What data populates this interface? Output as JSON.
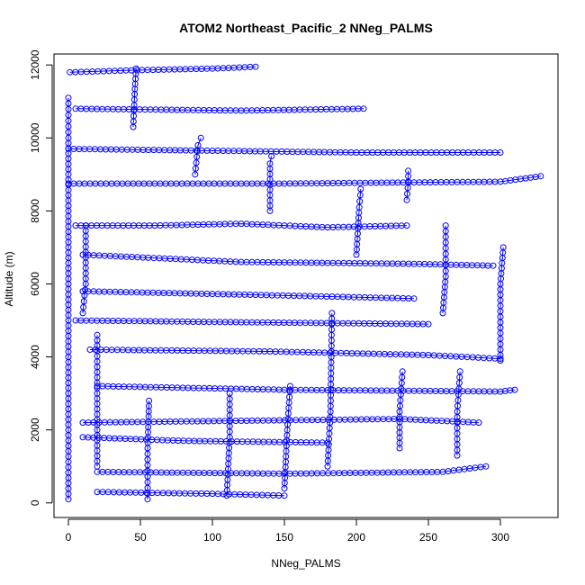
{
  "chart_data": {
    "type": "scatter",
    "title": "ATOM2 Northeast_Pacific_2 NNeg_PALMS",
    "xlabel": "NNeg_PALMS",
    "ylabel": "Altitude (m)",
    "xlim": [
      -10,
      340
    ],
    "ylim": [
      -400,
      12300
    ],
    "x_ticks": [
      0,
      50,
      100,
      150,
      200,
      250,
      300
    ],
    "y_ticks": [
      0,
      2000,
      4000,
      6000,
      8000,
      10000,
      12000
    ],
    "grid": false,
    "legend": "none",
    "color": "#0000ff",
    "marker": "open-circle",
    "series": [
      {
        "values": [
          [
            0,
            100
          ],
          [
            0,
            2000
          ],
          [
            0,
            4000
          ],
          [
            0,
            6000
          ],
          [
            0,
            8000
          ],
          [
            0,
            10000
          ],
          [
            0,
            11100
          ]
        ]
      },
      {
        "values": [
          [
            1,
            11800
          ],
          [
            40,
            11850
          ],
          [
            100,
            11900
          ],
          [
            130,
            11950
          ]
        ]
      },
      {
        "values": [
          [
            5,
            10800
          ],
          [
            120,
            10750
          ],
          [
            205,
            10800
          ]
        ]
      },
      {
        "values": [
          [
            0,
            9700
          ],
          [
            100,
            9650
          ],
          [
            200,
            9600
          ],
          [
            300,
            9600
          ]
        ]
      },
      {
        "values": [
          [
            0,
            8750
          ],
          [
            150,
            8750
          ],
          [
            300,
            8800
          ],
          [
            328,
            8950
          ]
        ]
      },
      {
        "values": [
          [
            5,
            7600
          ],
          [
            60,
            7600
          ],
          [
            120,
            7650
          ],
          [
            180,
            7550
          ],
          [
            235,
            7600
          ]
        ]
      },
      {
        "values": [
          [
            10,
            6800
          ],
          [
            120,
            6600
          ],
          [
            240,
            6550
          ],
          [
            295,
            6500
          ]
        ]
      },
      {
        "values": [
          [
            10,
            5800
          ],
          [
            130,
            5700
          ],
          [
            240,
            5600
          ]
        ]
      },
      {
        "values": [
          [
            5,
            5000
          ],
          [
            120,
            4950
          ],
          [
            250,
            4900
          ]
        ]
      },
      {
        "values": [
          [
            15,
            4200
          ],
          [
            140,
            4150
          ],
          [
            250,
            4050
          ],
          [
            300,
            3950
          ]
        ]
      },
      {
        "values": [
          [
            20,
            3200
          ],
          [
            150,
            3100
          ],
          [
            300,
            3050
          ],
          [
            310,
            3100
          ]
        ]
      },
      {
        "values": [
          [
            10,
            2200
          ],
          [
            120,
            2250
          ],
          [
            230,
            2300
          ],
          [
            285,
            2200
          ]
        ]
      },
      {
        "values": [
          [
            10,
            1800
          ],
          [
            80,
            1700
          ],
          [
            180,
            1650
          ]
        ]
      },
      {
        "values": [
          [
            20,
            850
          ],
          [
            150,
            800
          ],
          [
            260,
            850
          ],
          [
            290,
            1000
          ]
        ]
      },
      {
        "values": [
          [
            20,
            300
          ],
          [
            100,
            250
          ],
          [
            150,
            200
          ]
        ]
      },
      {
        "values": [
          [
            20,
            1000
          ],
          [
            20,
            3000
          ],
          [
            20,
            4600
          ]
        ]
      },
      {
        "values": [
          [
            150,
            400
          ],
          [
            152,
            2000
          ],
          [
            154,
            3200
          ]
        ]
      },
      {
        "values": [
          [
            230,
            1500
          ],
          [
            230,
            2500
          ],
          [
            232,
            3600
          ]
        ]
      },
      {
        "values": [
          [
            300,
            3900
          ],
          [
            300,
            6000
          ],
          [
            302,
            7000
          ]
        ]
      },
      {
        "values": [
          [
            55,
            100
          ],
          [
            55,
            1500
          ],
          [
            56,
            2800
          ]
        ]
      },
      {
        "values": [
          [
            110,
            200
          ],
          [
            112,
            1800
          ],
          [
            112,
            3000
          ]
        ]
      },
      {
        "values": [
          [
            180,
            1000
          ],
          [
            182,
            2500
          ],
          [
            183,
            5200
          ]
        ]
      },
      {
        "values": [
          [
            270,
            1300
          ],
          [
            270,
            2500
          ],
          [
            272,
            3600
          ]
        ]
      },
      {
        "values": [
          [
            10,
            5200
          ],
          [
            12,
            6000
          ],
          [
            12,
            7600
          ]
        ]
      },
      {
        "values": [
          [
            260,
            5200
          ],
          [
            262,
            6200
          ],
          [
            262,
            7600
          ]
        ]
      },
      {
        "values": [
          [
            200,
            6800
          ],
          [
            202,
            8100
          ],
          [
            203,
            8600
          ]
        ]
      },
      {
        "values": [
          [
            235,
            8300
          ],
          [
            236,
            8800
          ],
          [
            236,
            9100
          ]
        ]
      },
      {
        "values": [
          [
            88,
            9000
          ],
          [
            90,
            9800
          ],
          [
            92,
            10000
          ]
        ]
      },
      {
        "values": [
          [
            140,
            8000
          ],
          [
            140,
            9300
          ],
          [
            141,
            9500
          ]
        ]
      },
      {
        "values": [
          [
            45,
            10300
          ],
          [
            46,
            11200
          ],
          [
            47,
            11900
          ]
        ]
      }
    ]
  }
}
